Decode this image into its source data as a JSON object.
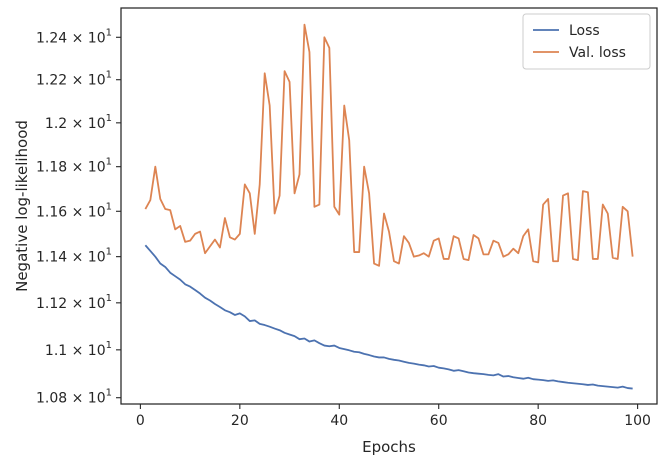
{
  "chart_data": {
    "type": "line",
    "title": "",
    "xlabel": "Epochs",
    "ylabel": "Negative log-likelihood",
    "xlim": [
      -3.9,
      103.9
    ],
    "ylim": [
      10.774,
      12.54
    ],
    "y_scale": "log",
    "grid": false,
    "legend_position": "top-right",
    "x_ticks": [
      0,
      20,
      40,
      60,
      80,
      100
    ],
    "x_tick_labels": [
      "0",
      "20",
      "40",
      "60",
      "80",
      "100"
    ],
    "y_ticks": [
      10.8,
      11.0,
      11.2,
      11.4,
      11.6,
      11.8,
      12.0,
      12.2,
      12.4
    ],
    "y_tick_labels": [
      {
        "mantissa": "1.08",
        "base": "10",
        "exp": "1"
      },
      {
        "mantissa": "1.1",
        "base": "10",
        "exp": "1"
      },
      {
        "mantissa": "1.12",
        "base": "10",
        "exp": "1"
      },
      {
        "mantissa": "1.14",
        "base": "10",
        "exp": "1"
      },
      {
        "mantissa": "1.16",
        "base": "10",
        "exp": "1"
      },
      {
        "mantissa": "1.18",
        "base": "10",
        "exp": "1"
      },
      {
        "mantissa": "1.2",
        "base": "10",
        "exp": "1"
      },
      {
        "mantissa": "1.22",
        "base": "10",
        "exp": "1"
      },
      {
        "mantissa": "1.24",
        "base": "10",
        "exp": "1"
      }
    ],
    "x": [
      1,
      2,
      3,
      4,
      5,
      6,
      7,
      8,
      9,
      10,
      11,
      12,
      13,
      14,
      15,
      16,
      17,
      18,
      19,
      20,
      21,
      22,
      23,
      24,
      25,
      26,
      27,
      28,
      29,
      30,
      31,
      32,
      33,
      34,
      35,
      36,
      37,
      38,
      39,
      40,
      41,
      42,
      43,
      44,
      45,
      46,
      47,
      48,
      49,
      50,
      51,
      52,
      53,
      54,
      55,
      56,
      57,
      58,
      59,
      60,
      61,
      62,
      63,
      64,
      65,
      66,
      67,
      68,
      69,
      70,
      71,
      72,
      73,
      74,
      75,
      76,
      77,
      78,
      79,
      80,
      81,
      82,
      83,
      84,
      85,
      86,
      87,
      88,
      89,
      90,
      91,
      92,
      93,
      94,
      95,
      96,
      97,
      98,
      99
    ],
    "series": [
      {
        "name": "Loss",
        "color": "#4c72b0",
        "values": [
          11.45,
          11.425,
          11.4,
          11.37,
          11.355,
          11.33,
          11.315,
          11.3,
          11.28,
          11.27,
          11.255,
          11.24,
          11.222,
          11.21,
          11.195,
          11.182,
          11.168,
          11.16,
          11.148,
          11.155,
          11.142,
          11.122,
          11.125,
          11.11,
          11.105,
          11.098,
          11.09,
          11.083,
          11.072,
          11.065,
          11.058,
          11.045,
          11.048,
          11.035,
          11.04,
          11.028,
          11.018,
          11.015,
          11.018,
          11.008,
          11.003,
          10.998,
          10.992,
          10.99,
          10.983,
          10.978,
          10.972,
          10.968,
          10.968,
          10.962,
          10.958,
          10.955,
          10.95,
          10.945,
          10.942,
          10.938,
          10.935,
          10.93,
          10.932,
          10.925,
          10.922,
          10.918,
          10.912,
          10.915,
          10.91,
          10.905,
          10.902,
          10.9,
          10.898,
          10.895,
          10.893,
          10.898,
          10.888,
          10.89,
          10.885,
          10.882,
          10.879,
          10.883,
          10.877,
          10.875,
          10.873,
          10.87,
          10.872,
          10.868,
          10.865,
          10.862,
          10.86,
          10.858,
          10.856,
          10.853,
          10.855,
          10.85,
          10.848,
          10.846,
          10.844,
          10.842,
          10.846,
          10.84,
          10.838
        ]
      },
      {
        "name": "Val. loss",
        "color": "#dd8452",
        "values": [
          11.61,
          11.65,
          11.8,
          11.655,
          11.61,
          11.605,
          11.52,
          11.535,
          11.465,
          11.47,
          11.5,
          11.51,
          11.415,
          11.445,
          11.475,
          11.44,
          11.57,
          11.485,
          11.475,
          11.5,
          11.72,
          11.68,
          11.5,
          11.72,
          12.23,
          12.08,
          11.59,
          11.67,
          12.24,
          12.19,
          11.68,
          11.765,
          12.46,
          12.33,
          11.62,
          11.63,
          12.4,
          12.35,
          11.62,
          11.585,
          12.08,
          11.92,
          11.42,
          11.42,
          11.8,
          11.68,
          11.37,
          11.36,
          11.59,
          11.51,
          11.38,
          11.37,
          11.49,
          11.46,
          11.4,
          11.405,
          11.415,
          11.4,
          11.47,
          11.48,
          11.39,
          11.39,
          11.49,
          11.48,
          11.39,
          11.385,
          11.495,
          11.48,
          11.41,
          11.41,
          11.47,
          11.46,
          11.4,
          11.41,
          11.435,
          11.415,
          11.49,
          11.52,
          11.38,
          11.375,
          11.63,
          11.655,
          11.38,
          11.38,
          11.67,
          11.68,
          11.39,
          11.385,
          11.69,
          11.685,
          11.39,
          11.39,
          11.63,
          11.59,
          11.395,
          11.39,
          11.62,
          11.6,
          11.4
        ]
      }
    ]
  }
}
